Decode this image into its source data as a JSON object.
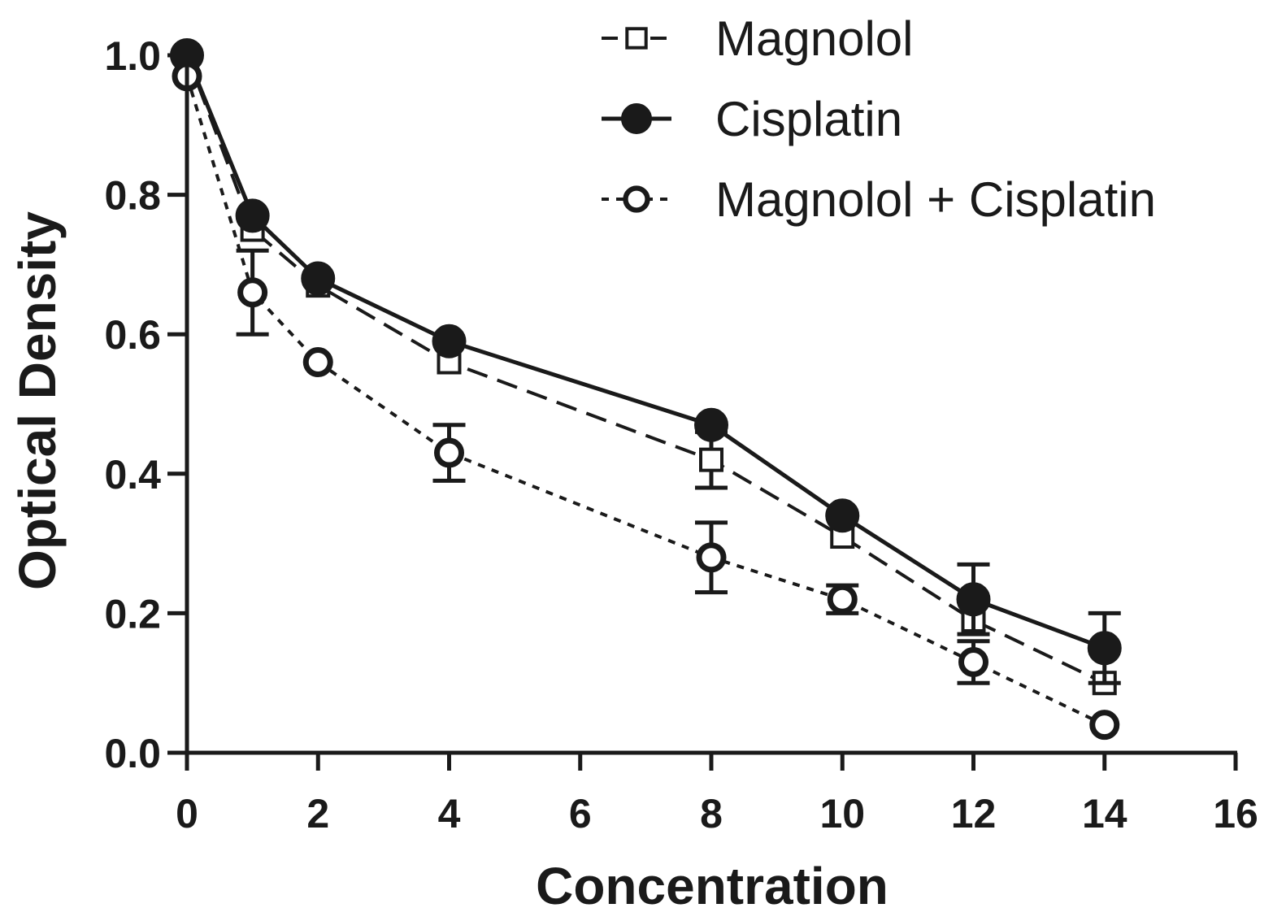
{
  "chart_data": {
    "type": "line",
    "title": "",
    "xlabel": "Concentration",
    "ylabel": "Optical Density",
    "xlim": [
      0,
      16
    ],
    "ylim": [
      0,
      1.0
    ],
    "x_ticks": [
      "0",
      "2",
      "4",
      "6",
      "8",
      "10",
      "12",
      "14",
      "16"
    ],
    "y_ticks": [
      "0.0",
      "0.2",
      "0.4",
      "0.6",
      "0.8",
      "1.0"
    ],
    "grid": false,
    "legend_position": "top-right",
    "x": [
      0,
      1,
      2,
      4,
      8,
      10,
      12,
      14
    ],
    "series": [
      {
        "name": "Magnolol",
        "marker": "open-square",
        "line_style": "long-dash",
        "values": [
          1.0,
          0.75,
          0.67,
          0.56,
          0.42,
          0.31,
          0.19,
          0.1
        ],
        "errors": [
          0.0,
          0.0,
          0.0,
          0.0,
          0.04,
          0.0,
          0.0,
          0.0
        ]
      },
      {
        "name": "Cisplatin",
        "marker": "filled-circle",
        "line_style": "solid",
        "values": [
          1.0,
          0.77,
          0.68,
          0.59,
          0.47,
          0.34,
          0.22,
          0.15
        ],
        "errors": [
          0.0,
          0.0,
          0.0,
          0.0,
          0.0,
          0.0,
          0.05,
          0.05
        ]
      },
      {
        "name": "Magnolol + Cisplatin",
        "marker": "open-circle",
        "line_style": "short-dash",
        "values": [
          0.97,
          0.66,
          0.56,
          0.43,
          0.28,
          0.22,
          0.13,
          0.04
        ],
        "errors": [
          0.0,
          0.06,
          0.0,
          0.04,
          0.05,
          0.02,
          0.03,
          0.0
        ]
      }
    ]
  }
}
